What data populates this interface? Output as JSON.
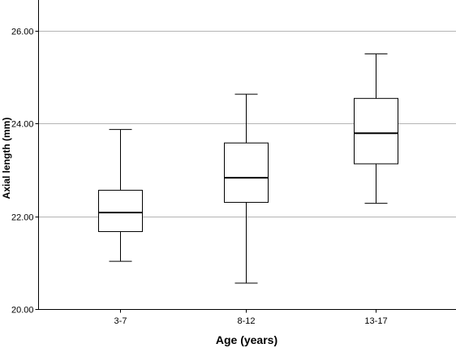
{
  "chart_data": {
    "type": "boxplot",
    "title": "",
    "xlabel": "Age (years)",
    "ylabel": "Axial length (mm)",
    "ylim": [
      20.0,
      26.6
    ],
    "yticks": [
      "20.00",
      "22.00",
      "24.00",
      "26.00"
    ],
    "ytick_values": [
      20,
      22,
      24,
      26
    ],
    "grid": "horizontal",
    "categories": [
      "3-7",
      "8-12",
      "13-17"
    ],
    "boxes": [
      {
        "category": "3-7",
        "min": 21.03,
        "q1": 21.67,
        "median": 22.08,
        "q3": 22.56,
        "max": 23.87
      },
      {
        "category": "8-12",
        "min": 20.56,
        "q1": 22.3,
        "median": 22.83,
        "q3": 23.58,
        "max": 24.63
      },
      {
        "category": "13-17",
        "min": 22.28,
        "q1": 23.13,
        "median": 23.79,
        "q3": 24.54,
        "max": 25.5
      }
    ],
    "colors": {
      "grid": "#b4b4b4",
      "box_stroke": "#000000",
      "axis": "#000000",
      "background": "#ffffff"
    }
  }
}
